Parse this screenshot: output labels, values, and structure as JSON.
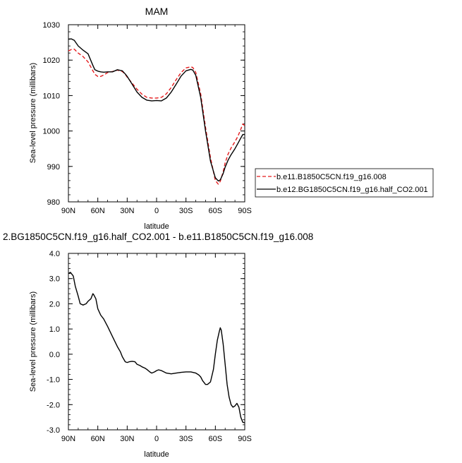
{
  "chart_data": [
    {
      "type": "line",
      "title": "MAM",
      "xlabel": "latitude",
      "ylabel": "Sea-level pressure (millibars)",
      "x_tick_labels": [
        "90N",
        "60N",
        "30N",
        "0",
        "30S",
        "60S",
        "90S"
      ],
      "x_tick_values": [
        90,
        60,
        30,
        0,
        -30,
        -60,
        -90
      ],
      "xlim": [
        90,
        -90
      ],
      "ylim": [
        980,
        1030
      ],
      "y_ticks": [
        980,
        990,
        1000,
        1010,
        1020,
        1030
      ],
      "y_tick_labels": [
        "980",
        "990",
        "1000",
        "1010",
        "1020",
        "1030"
      ],
      "grid": false,
      "legend_position": "right",
      "series": [
        {
          "name": "b.e11.B1850C5CN.f19_g16.008",
          "color": "#e41a1c",
          "style": "dashed",
          "x": [
            90,
            87,
            84,
            80,
            75,
            70,
            65,
            63,
            60,
            57,
            54,
            50,
            45,
            40,
            35,
            32,
            30,
            25,
            20,
            15,
            10,
            5,
            0,
            -5,
            -10,
            -15,
            -20,
            -25,
            -30,
            -35,
            -37,
            -40,
            -45,
            -50,
            -55,
            -60,
            -63,
            -65,
            -68,
            -70,
            -73,
            -76,
            -80,
            -83,
            -86,
            -88,
            -90
          ],
          "y": [
            1022.6,
            1023.0,
            1023.1,
            1022.0,
            1021.0,
            1019.5,
            1017.0,
            1016.0,
            1015.4,
            1015.4,
            1015.8,
            1016.5,
            1016.8,
            1017.2,
            1016.8,
            1016.0,
            1015.2,
            1013.5,
            1011.8,
            1010.4,
            1009.5,
            1009.3,
            1009.3,
            1009.5,
            1010.5,
            1012.3,
            1014.5,
            1016.5,
            1017.8,
            1018.1,
            1017.9,
            1016.5,
            1010.5,
            1001.0,
            992.5,
            986.0,
            985.0,
            985.8,
            988.5,
            991.0,
            993.5,
            995.2,
            997.0,
            998.5,
            1000.5,
            1002.0,
            1001.5
          ]
        },
        {
          "name": "b.e12.BG1850C5CN.f19_g16.half_CO2.001",
          "color": "#000000",
          "style": "solid",
          "x": [
            90,
            87,
            84,
            80,
            75,
            70,
            65,
            63,
            60,
            57,
            54,
            50,
            45,
            40,
            35,
            32,
            30,
            25,
            20,
            15,
            10,
            5,
            0,
            -5,
            -10,
            -15,
            -20,
            -25,
            -30,
            -35,
            -37,
            -40,
            -45,
            -50,
            -55,
            -60,
            -63,
            -65,
            -68,
            -70,
            -73,
            -76,
            -80,
            -83,
            -86,
            -88,
            -90
          ],
          "y": [
            1025.9,
            1026.0,
            1025.6,
            1024.0,
            1022.8,
            1021.8,
            1018.5,
            1017.3,
            1016.9,
            1016.7,
            1016.6,
            1016.7,
            1016.7,
            1017.3,
            1017.0,
            1016.1,
            1015.4,
            1013.2,
            1011.0,
            1009.5,
            1008.7,
            1008.5,
            1008.6,
            1008.5,
            1009.3,
            1011.0,
            1013.2,
            1015.5,
            1017.0,
            1017.4,
            1017.2,
            1015.7,
            1009.5,
            1000.0,
            991.5,
            986.8,
            985.9,
            986.2,
            988.0,
            989.8,
            991.8,
            993.3,
            995.0,
            996.5,
            998.0,
            999.0,
            999.0
          ]
        }
      ]
    },
    {
      "type": "line",
      "title": "2.BG1850C5CN.f19_g16.half_CO2.001 - b.e11.B1850C5CN.f19_g16.008",
      "xlabel": "latitude",
      "ylabel": "Sea-level pressure (millibars)",
      "x_tick_labels": [
        "90N",
        "60N",
        "30N",
        "0",
        "30S",
        "60S",
        "90S"
      ],
      "x_tick_values": [
        90,
        60,
        30,
        0,
        -30,
        -60,
        -90
      ],
      "xlim": [
        90,
        -90
      ],
      "ylim": [
        -3.0,
        4.0
      ],
      "y_ticks": [
        -3,
        -2,
        -1,
        0,
        1,
        2,
        3,
        4
      ],
      "y_tick_labels": [
        "-3.0",
        "-2.0",
        "-1.0",
        "0.0",
        "1.0",
        "2.0",
        "3.0",
        "4.0"
      ],
      "grid": false,
      "series": [
        {
          "color": "#000000",
          "style": "solid",
          "x": [
            90,
            88,
            85,
            83,
            80,
            78,
            75,
            72,
            70,
            67,
            65,
            64,
            62,
            60,
            57,
            54,
            50,
            45,
            40,
            37,
            35,
            32,
            30,
            28,
            25,
            22,
            20,
            17,
            15,
            12,
            10,
            7,
            5,
            2,
            0,
            -2,
            -5,
            -10,
            -15,
            -20,
            -25,
            -30,
            -35,
            -40,
            -43,
            -45,
            -47,
            -50,
            -52,
            -55,
            -58,
            -60,
            -62,
            -64,
            -65,
            -66,
            -68,
            -70,
            -72,
            -74,
            -76,
            -78,
            -80,
            -82,
            -84,
            -86,
            -88,
            -90
          ],
          "y": [
            3.2,
            3.25,
            3.1,
            2.7,
            2.3,
            2.0,
            1.95,
            2.0,
            2.1,
            2.2,
            2.4,
            2.35,
            2.2,
            1.8,
            1.55,
            1.4,
            1.1,
            0.7,
            0.3,
            0.1,
            -0.1,
            -0.3,
            -0.33,
            -0.3,
            -0.28,
            -0.3,
            -0.4,
            -0.45,
            -0.5,
            -0.55,
            -0.6,
            -0.7,
            -0.75,
            -0.7,
            -0.65,
            -0.62,
            -0.65,
            -0.75,
            -0.78,
            -0.75,
            -0.72,
            -0.7,
            -0.7,
            -0.75,
            -0.82,
            -0.9,
            -1.05,
            -1.2,
            -1.2,
            -1.1,
            -0.6,
            0.0,
            0.55,
            0.9,
            1.05,
            0.95,
            0.4,
            -0.4,
            -1.2,
            -1.7,
            -2.0,
            -2.1,
            -2.05,
            -1.95,
            -2.1,
            -2.5,
            -2.7,
            -2.72
          ]
        }
      ]
    }
  ]
}
